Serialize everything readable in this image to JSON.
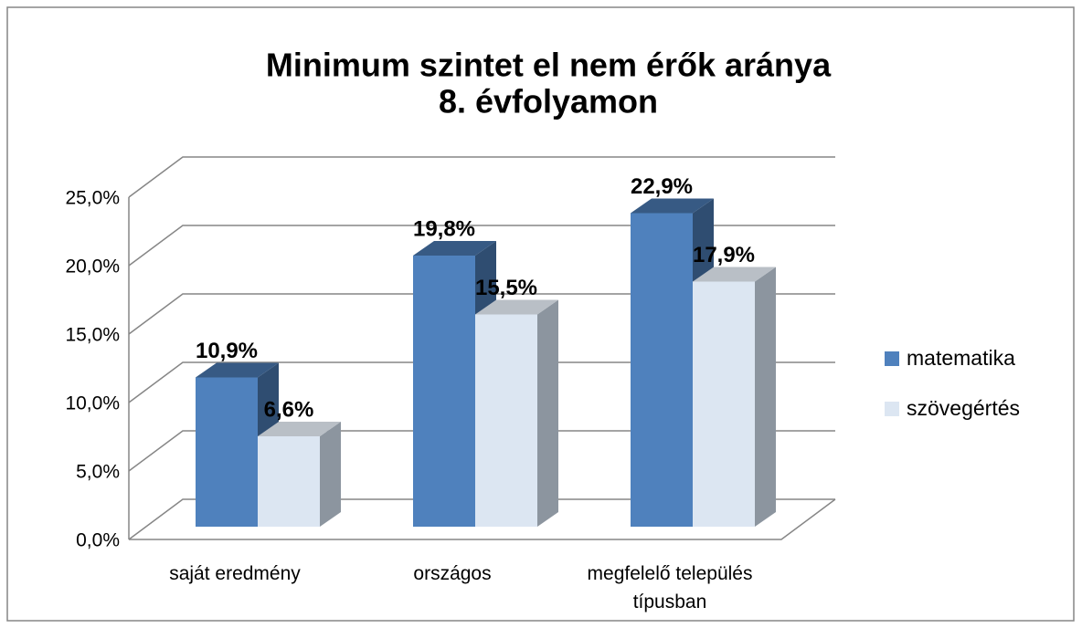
{
  "chart_data": {
    "type": "bar3d",
    "title": [
      "Minimum szintet el nem érők aránya",
      "8. évfolyamon"
    ],
    "categories": [
      "saját eredmény",
      "országos",
      "megfelelő település típusban"
    ],
    "series": [
      {
        "name": "matematika",
        "color": "#4f81bd",
        "values": [
          10.9,
          19.8,
          22.9
        ],
        "value_labels": [
          "10,9%",
          "19,8%",
          "22,9%"
        ]
      },
      {
        "name": "szövegértés",
        "color": "#dce6f2",
        "values": [
          6.6,
          15.5,
          17.9
        ],
        "value_labels": [
          "6,6%",
          "15,5%",
          "17,9%"
        ]
      }
    ],
    "ylim": [
      0,
      25
    ],
    "yticks": [
      {
        "value": 0,
        "label": "0,0%"
      },
      {
        "value": 5,
        "label": "5,0%"
      },
      {
        "value": 10,
        "label": "10,0%"
      },
      {
        "value": 15,
        "label": "15,0%"
      },
      {
        "value": 20,
        "label": "20,0%"
      },
      {
        "value": 25,
        "label": "25,0%"
      }
    ],
    "grid": true,
    "legend": "right"
  }
}
